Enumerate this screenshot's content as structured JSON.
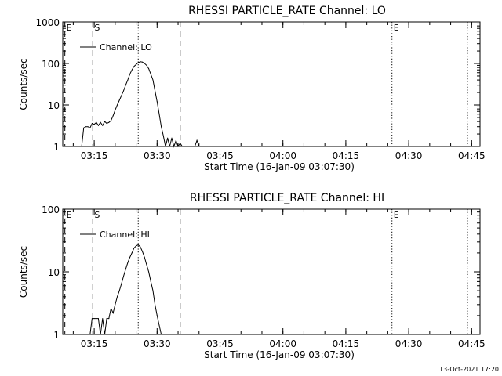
{
  "chart_data": [
    {
      "type": "line",
      "title": "RHESSI PARTICLE_RATE Channel: LO",
      "xlabel": "Start Time (16-Jan-09 03:07:30)",
      "ylabel": "Counts/sec",
      "yscale": "log",
      "ylim": [
        1,
        1000
      ],
      "yticks": [
        "1",
        "10",
        "100",
        "1000"
      ],
      "xlim_minutes": [
        "03:07:30",
        "04:47:00"
      ],
      "xticks": [
        "03:15",
        "03:30",
        "03:45",
        "04:00",
        "04:15",
        "04:30",
        "04:45"
      ],
      "legend": "top-left",
      "series": [
        {
          "name": "Channel: LO",
          "x": [
            "03:12:00",
            "03:12:30",
            "03:13:00",
            "03:13:30",
            "03:14:00",
            "03:14:30",
            "03:15:00",
            "03:15:30",
            "03:16:00",
            "03:16:30",
            "03:17:00",
            "03:17:30",
            "03:18:00",
            "03:18:30",
            "03:19:00",
            "03:19:30",
            "03:20:00",
            "03:20:30",
            "03:21:00",
            "03:21:30",
            "03:22:00",
            "03:22:30",
            "03:23:00",
            "03:23:30",
            "03:24:00",
            "03:24:30",
            "03:25:00",
            "03:25:30",
            "03:26:00",
            "03:26:30",
            "03:27:00",
            "03:27:30",
            "03:28:00",
            "03:28:30",
            "03:29:00",
            "03:29:30",
            "03:30:00",
            "03:30:30",
            "03:31:00",
            "03:31:30",
            "03:32:00",
            "03:32:30",
            "03:33:00",
            "03:33:30",
            "03:34:00",
            "03:34:30",
            "03:35:00",
            "03:35:30",
            "03:36:00",
            "03:36:30",
            "03:37:00",
            "03:37:30",
            "03:38:00",
            "03:38:30",
            "03:39:00",
            "03:39:30",
            "03:40:00"
          ],
          "values": [
            1,
            2.8,
            3,
            3,
            2.8,
            3.6,
            3.4,
            3.8,
            3.2,
            3.8,
            3.2,
            4,
            3.6,
            3.8,
            4.2,
            5.5,
            7.5,
            10,
            13,
            17,
            22,
            30,
            40,
            55,
            70,
            85,
            95,
            105,
            110,
            108,
            100,
            90,
            75,
            55,
            40,
            22,
            12,
            6,
            3,
            1.8,
            1,
            1.6,
            1,
            1.6,
            1,
            1.4,
            1,
            1.2,
            1,
            1,
            1,
            1,
            1,
            1,
            1,
            1.4,
            1
          ]
        }
      ],
      "markers": [
        {
          "label": "E",
          "time": "03:08:00",
          "style": "dashed"
        },
        {
          "label": "S",
          "time": "03:14:40",
          "style": "dashed"
        },
        {
          "label": "",
          "time": "03:25:30",
          "style": "dotted"
        },
        {
          "label": "",
          "time": "03:35:30",
          "style": "dashed"
        },
        {
          "label": "E",
          "time": "04:26:00",
          "style": "dotted"
        },
        {
          "label": "",
          "time": "04:44:00",
          "style": "dotted"
        }
      ]
    },
    {
      "type": "line",
      "title": "RHESSI PARTICLE_RATE Channel: HI",
      "xlabel": "Start Time (16-Jan-09 03:07:30)",
      "ylabel": "Counts/sec",
      "yscale": "log",
      "ylim": [
        1,
        100
      ],
      "yticks": [
        "1",
        "10",
        "100"
      ],
      "xlim_minutes": [
        "03:07:30",
        "04:47:00"
      ],
      "xticks": [
        "03:15",
        "03:30",
        "03:45",
        "04:00",
        "04:15",
        "04:30",
        "04:45"
      ],
      "legend": "top-left",
      "series": [
        {
          "name": "Channel: HI",
          "x": [
            "03:14:00",
            "03:14:30",
            "03:15:00",
            "03:15:30",
            "03:16:00",
            "03:16:30",
            "03:17:00",
            "03:17:30",
            "03:18:00",
            "03:18:30",
            "03:19:00",
            "03:19:30",
            "03:20:00",
            "03:20:30",
            "03:21:00",
            "03:21:30",
            "03:22:00",
            "03:22:30",
            "03:23:00",
            "03:23:30",
            "03:24:00",
            "03:24:30",
            "03:25:00",
            "03:25:30",
            "03:26:00",
            "03:26:30",
            "03:27:00",
            "03:27:30",
            "03:28:00",
            "03:28:30",
            "03:29:00",
            "03:29:30",
            "03:30:00",
            "03:30:30",
            "03:31:00"
          ],
          "values": [
            1,
            1.8,
            1.8,
            1.8,
            1.8,
            1,
            1.8,
            1,
            1.8,
            1.8,
            2.6,
            2.2,
            3,
            4,
            5,
            6.5,
            8.5,
            11,
            14,
            17,
            20,
            24,
            26,
            27,
            25,
            21,
            17,
            13,
            10,
            7,
            5,
            3,
            2,
            1.4,
            1
          ]
        }
      ],
      "markers": [
        {
          "label": "E",
          "time": "03:08:00",
          "style": "dashed"
        },
        {
          "label": "S",
          "time": "03:14:40",
          "style": "dashed"
        },
        {
          "label": "",
          "time": "03:25:30",
          "style": "dotted"
        },
        {
          "label": "",
          "time": "03:35:30",
          "style": "dashed"
        },
        {
          "label": "E",
          "time": "04:26:00",
          "style": "dotted"
        },
        {
          "label": "",
          "time": "04:44:00",
          "style": "dotted"
        }
      ]
    }
  ],
  "footer": {
    "timestamp": "13-Oct-2021 17:20"
  }
}
